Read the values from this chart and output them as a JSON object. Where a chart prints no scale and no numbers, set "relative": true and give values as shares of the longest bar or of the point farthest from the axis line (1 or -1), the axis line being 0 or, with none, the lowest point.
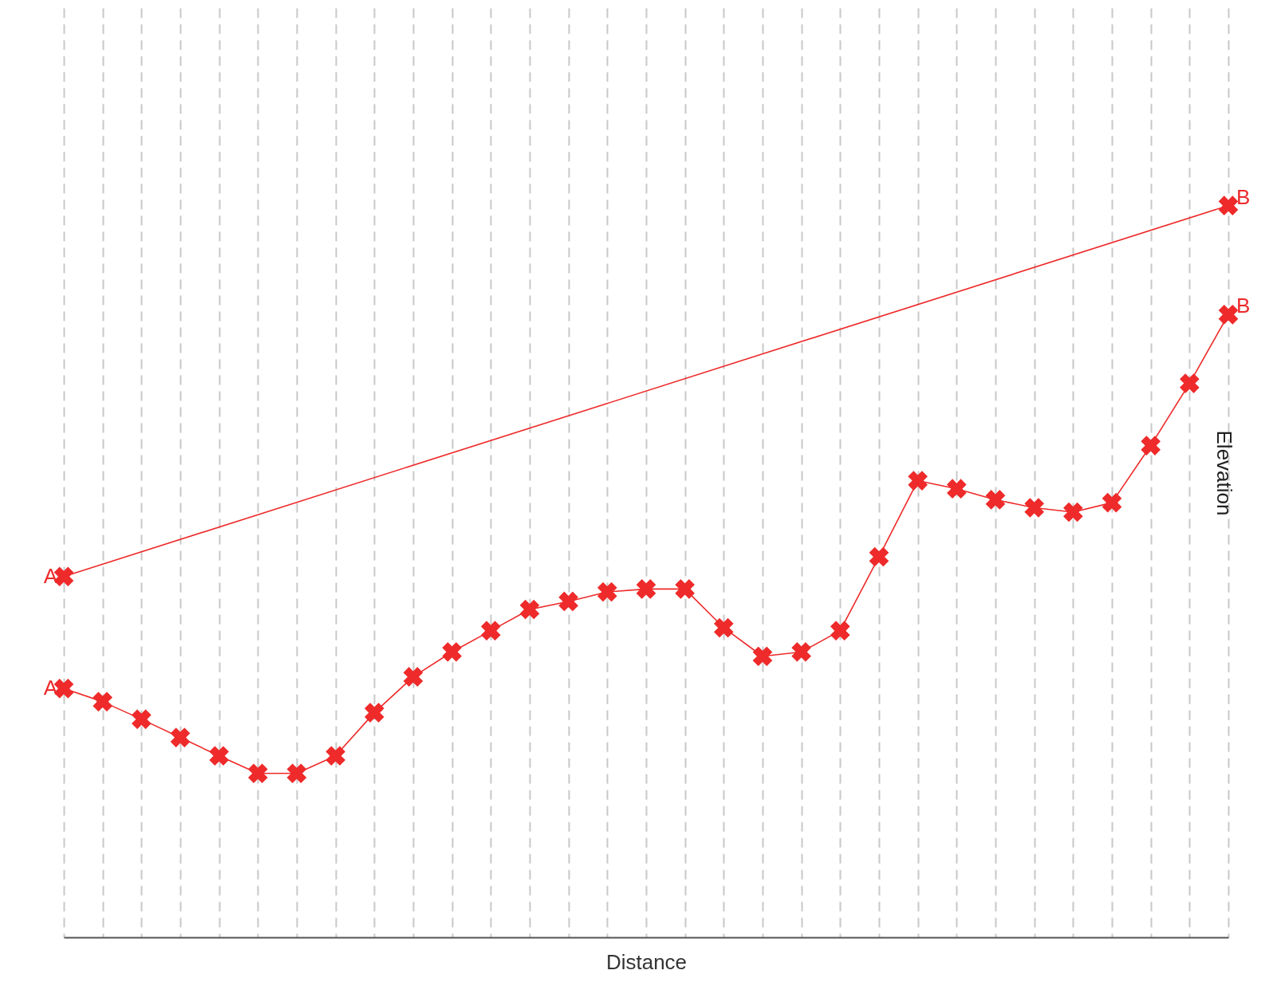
{
  "chart_data": {
    "type": "line",
    "xlabel": "Distance",
    "ylabel": "Elevation",
    "relative": true,
    "categories": [
      null,
      null,
      null,
      null,
      null,
      null,
      null,
      null,
      null,
      null,
      null,
      null,
      null,
      null,
      null,
      null,
      null,
      null,
      null,
      null,
      null,
      null,
      null,
      null,
      null,
      null,
      null,
      null,
      null,
      null,
      null
    ],
    "series": [
      {
        "color": "#ee2a2a",
        "values": [
          0.493,
          null,
          null,
          null,
          null,
          null,
          null,
          null,
          null,
          null,
          null,
          null,
          null,
          null,
          null,
          null,
          null,
          null,
          null,
          null,
          null,
          null,
          null,
          null,
          null,
          null,
          null,
          null,
          null,
          null,
          1.0
        ]
      },
      {
        "color": "#ee2a2a",
        "values": [
          0.34,
          0.322,
          0.298,
          0.273,
          0.248,
          0.224,
          0.224,
          0.248,
          0.307,
          0.356,
          0.39,
          0.419,
          0.448,
          0.459,
          0.472,
          0.476,
          0.476,
          0.423,
          0.384,
          0.39,
          0.419,
          0.52,
          0.624,
          0.613,
          0.598,
          0.587,
          0.581,
          0.594,
          0.672,
          0.757,
          0.851
        ]
      }
    ],
    "annotations": [
      "A",
      "B",
      "A",
      "B"
    ],
    "grid": "x",
    "marker": "cross",
    "line_style": "solid"
  }
}
